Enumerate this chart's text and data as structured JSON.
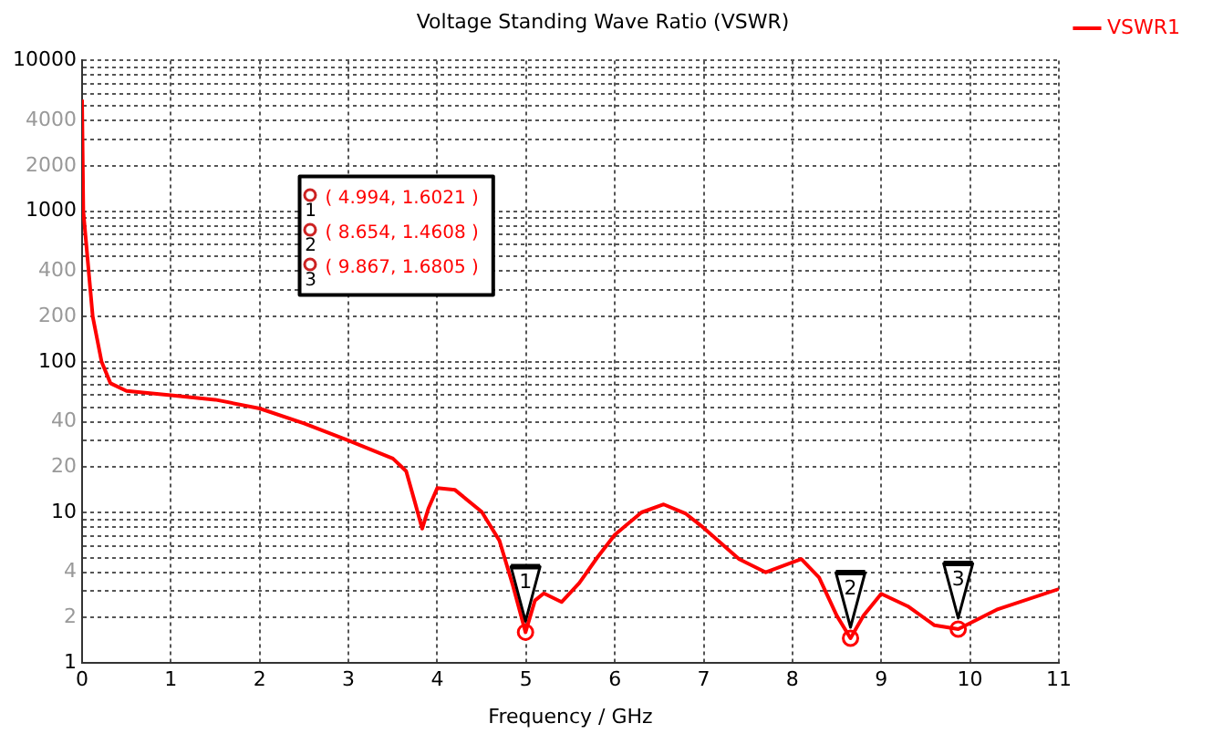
{
  "chart_data": {
    "type": "line",
    "title": "Voltage Standing Wave Ratio (VSWR)",
    "xlabel": "Frequency / GHz",
    "series": [
      {
        "name": "VSWR1",
        "color": "#ff0000",
        "x": [
          0,
          0.014,
          0.12,
          0.22,
          0.32,
          0.5,
          1,
          1.5,
          2,
          2.5,
          3,
          3.5,
          3.65,
          3.75,
          3.83,
          3.9,
          4,
          4.2,
          4.5,
          4.7,
          4.85,
          4.994,
          5.1,
          5.2,
          5.4,
          5.6,
          5.8,
          6,
          6.3,
          6.55,
          6.8,
          7,
          7.4,
          7.7,
          8.1,
          8.3,
          8.5,
          8.654,
          8.8,
          9,
          9.3,
          9.6,
          9.867,
          10.3,
          11
        ],
        "values": [
          5500,
          1000,
          200,
          100,
          72,
          64,
          60,
          56,
          49,
          39,
          30,
          22.8,
          18.8,
          11.6,
          7.8,
          10.6,
          14.5,
          14.1,
          10.1,
          6.5,
          3.3,
          1.6021,
          2.6,
          2.9,
          2.54,
          3.4,
          5,
          7.1,
          10,
          11.3,
          9.8,
          7.9,
          4.9,
          4,
          4.9,
          3.7,
          2.06,
          1.4608,
          2.06,
          2.88,
          2.38,
          1.78,
          1.6805,
          2.26,
          3.1
        ]
      },
      {
        "type": "scatter",
        "color": "#ff0000",
        "marker": "circle",
        "x": [
          4.994,
          8.654,
          9.867
        ],
        "values": [
          1.6021,
          1.4608,
          1.6805
        ]
      }
    ],
    "xlim": [
      0,
      11
    ],
    "xticks": [
      0,
      1,
      2,
      3,
      4,
      5,
      6,
      7,
      8,
      9,
      10,
      11
    ],
    "log": "y",
    "ylim": [
      1,
      10000
    ],
    "yticks": [
      1,
      2,
      {
        "value": 3,
        "label": null
      },
      4,
      {
        "value": 5,
        "label": null
      },
      {
        "value": 6,
        "label": null
      },
      {
        "value": 7,
        "label": null
      },
      {
        "value": 8,
        "label": null
      },
      {
        "value": 9,
        "label": null
      },
      10,
      20,
      {
        "value": 30,
        "label": null
      },
      40,
      {
        "value": 50,
        "label": null
      },
      {
        "value": 60,
        "label": null
      },
      {
        "value": 70,
        "label": null
      },
      {
        "value": 80,
        "label": null
      },
      {
        "value": 90,
        "label": null
      },
      100,
      200,
      {
        "value": 300,
        "label": null
      },
      400,
      {
        "value": 500,
        "label": null
      },
      {
        "value": 600,
        "label": null
      },
      {
        "value": 700,
        "label": null
      },
      {
        "value": 800,
        "label": null
      },
      {
        "value": 900,
        "label": null
      },
      1000,
      2000,
      {
        "value": 3000,
        "label": null
      },
      4000,
      {
        "value": 5000,
        "label": null
      },
      {
        "value": 6000,
        "label": null
      },
      {
        "value": 7000,
        "label": null
      },
      {
        "value": 8000,
        "label": null
      },
      {
        "value": 9000,
        "label": null
      },
      10000
    ],
    "grid": true,
    "legend": "top right",
    "line_style": "solid",
    "marker": "none",
    "annotations": [
      {
        "text": "1",
        "x": 4.994,
        "y": 1.6021
      },
      {
        "text": "2",
        "x": 8.654,
        "y": 1.4608
      },
      {
        "text": "3",
        "x": 9.867,
        "y": 1.6805
      },
      "( 4.994, 1.6021 )",
      "( 8.654, 1.4608 )",
      "( 9.867, 1.6805 )"
    ]
  }
}
